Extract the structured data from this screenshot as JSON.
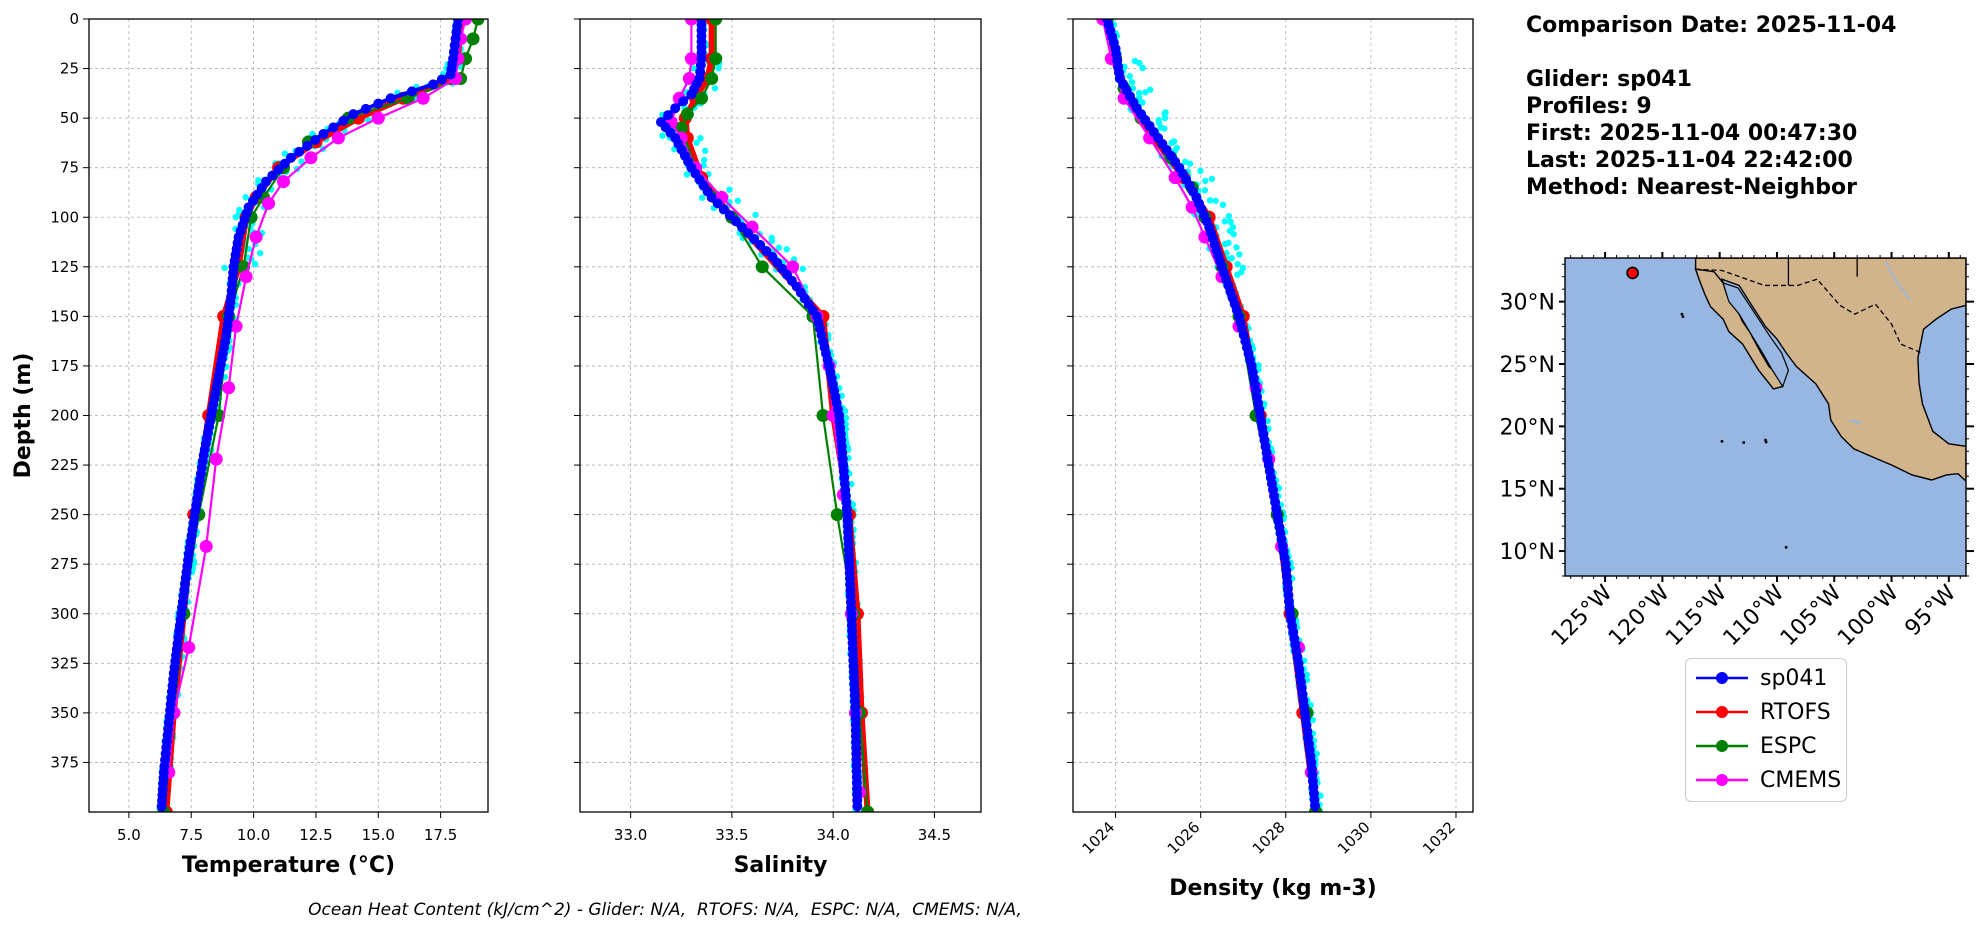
{
  "info": {
    "comparison_date": "Comparison Date: 2025-11-04",
    "glider": "Glider: sp041",
    "profiles": "Profiles: 9",
    "first": "First: 2025-11-04 00:47:30",
    "last": "Last: 2025-11-04 22:42:00",
    "method": "Method: Nearest-Neighbor"
  },
  "footer": "Ocean Heat Content (kJ/cm^2) - Glider: N/A,  RTOFS: N/A,  ESPC: N/A,  CMEMS: N/A,",
  "colors": {
    "sp041": "#0000ff",
    "RTOFS": "#ff0000",
    "ESPC": "#008000",
    "CMEMS": "#ff00ff",
    "glider_points": "#00ffff",
    "ocean": "#97b6e1",
    "land": "#d2b48c"
  },
  "legend": [
    {
      "name": "sp041",
      "color": "#0000ff"
    },
    {
      "name": "RTOFS",
      "color": "#ff0000"
    },
    {
      "name": "ESPC",
      "color": "#008000"
    },
    {
      "name": "CMEMS",
      "color": "#ff00ff"
    }
  ],
  "chart_data": [
    {
      "type": "line",
      "xlabel": "Temperature (°C)",
      "ylabel": "Depth (m)",
      "xlim": [
        3.4,
        19.4
      ],
      "ylim": [
        400,
        0
      ],
      "xticks": [
        "5.0",
        "7.5",
        "10.0",
        "12.5",
        "15.0",
        "17.5"
      ],
      "yticks": [
        "0",
        "25",
        "50",
        "75",
        "100",
        "125",
        "150",
        "175",
        "200",
        "225",
        "250",
        "275",
        "300",
        "325",
        "350",
        "375"
      ],
      "grid": true,
      "series": [
        {
          "name": "sp041",
          "points": [
            [
              18.2,
              0
            ],
            [
              18.1,
              10
            ],
            [
              18.0,
              20
            ],
            [
              17.9,
              28
            ],
            [
              17.2,
              33
            ],
            [
              15.5,
              40
            ],
            [
              14.0,
              48
            ],
            [
              12.8,
              58
            ],
            [
              11.5,
              70
            ],
            [
              10.5,
              82
            ],
            [
              9.8,
              95
            ],
            [
              9.4,
              110
            ],
            [
              9.2,
              125
            ],
            [
              9.1,
              140
            ],
            [
              8.9,
              160
            ],
            [
              8.6,
              180
            ],
            [
              8.3,
              200
            ],
            [
              8.0,
              220
            ],
            [
              7.7,
              245
            ],
            [
              7.4,
              270
            ],
            [
              7.1,
              300
            ],
            [
              6.8,
              330
            ],
            [
              6.6,
              355
            ],
            [
              6.4,
              380
            ],
            [
              6.3,
              400
            ]
          ]
        },
        {
          "name": "RTOFS",
          "points": [
            [
              18.3,
              0
            ],
            [
              18.2,
              20
            ],
            [
              17.9,
              30
            ],
            [
              16.0,
              40
            ],
            [
              14.2,
              50
            ],
            [
              12.5,
              62
            ],
            [
              11.0,
              75
            ],
            [
              10.1,
              90
            ],
            [
              9.7,
              100
            ],
            [
              9.4,
              125
            ],
            [
              8.8,
              150
            ],
            [
              8.2,
              200
            ],
            [
              7.6,
              250
            ],
            [
              7.2,
              300
            ],
            [
              6.8,
              350
            ],
            [
              6.5,
              400
            ]
          ]
        },
        {
          "name": "ESPC",
          "points": [
            [
              19.0,
              0
            ],
            [
              18.8,
              10
            ],
            [
              18.5,
              20
            ],
            [
              18.3,
              30
            ],
            [
              16.2,
              40
            ],
            [
              13.8,
              50
            ],
            [
              12.2,
              62
            ],
            [
              11.2,
              75
            ],
            [
              10.4,
              90
            ],
            [
              9.9,
              100
            ],
            [
              9.6,
              125
            ],
            [
              9.0,
              150
            ],
            [
              8.6,
              200
            ],
            [
              7.8,
              250
            ],
            [
              7.2,
              300
            ],
            [
              6.8,
              350
            ],
            [
              6.4,
              400
            ]
          ]
        },
        {
          "name": "CMEMS",
          "points": [
            [
              18.5,
              0
            ],
            [
              18.3,
              10
            ],
            [
              18.2,
              20
            ],
            [
              18.1,
              30
            ],
            [
              16.8,
              40
            ],
            [
              15.0,
              50
            ],
            [
              13.4,
              60
            ],
            [
              12.3,
              70
            ],
            [
              11.2,
              82
            ],
            [
              10.6,
              93
            ],
            [
              10.1,
              110
            ],
            [
              9.7,
              130
            ],
            [
              9.3,
              155
            ],
            [
              9.0,
              186
            ],
            [
              8.5,
              222
            ],
            [
              8.1,
              266
            ],
            [
              7.4,
              317
            ],
            [
              6.8,
              350
            ],
            [
              6.6,
              380
            ]
          ]
        }
      ]
    },
    {
      "type": "line",
      "xlabel": "Salinity",
      "xlim": [
        32.75,
        34.73
      ],
      "ylim": [
        400,
        0
      ],
      "xticks": [
        "33.0",
        "33.5",
        "34.0",
        "34.5"
      ],
      "grid": true,
      "series": [
        {
          "name": "sp041",
          "points": [
            [
              33.35,
              0
            ],
            [
              33.35,
              20
            ],
            [
              33.34,
              30
            ],
            [
              33.3,
              38
            ],
            [
              33.22,
              45
            ],
            [
              33.15,
              52
            ],
            [
              33.22,
              60
            ],
            [
              33.3,
              75
            ],
            [
              33.4,
              90
            ],
            [
              33.55,
              105
            ],
            [
              33.7,
              120
            ],
            [
              33.82,
              135
            ],
            [
              33.92,
              150
            ],
            [
              33.98,
              175
            ],
            [
              34.03,
              200
            ],
            [
              34.05,
              225
            ],
            [
              34.07,
              250
            ],
            [
              34.09,
              300
            ],
            [
              34.11,
              350
            ],
            [
              34.12,
              400
            ]
          ]
        },
        {
          "name": "RTOFS",
          "points": [
            [
              33.4,
              0
            ],
            [
              33.4,
              20
            ],
            [
              33.38,
              30
            ],
            [
              33.32,
              40
            ],
            [
              33.27,
              50
            ],
            [
              33.28,
              60
            ],
            [
              33.35,
              80
            ],
            [
              33.5,
              100
            ],
            [
              33.95,
              150
            ],
            [
              34.0,
              200
            ],
            [
              34.08,
              250
            ],
            [
              34.12,
              300
            ],
            [
              34.14,
              350
            ],
            [
              34.17,
              400
            ]
          ]
        },
        {
          "name": "ESPC",
          "points": [
            [
              33.42,
              0
            ],
            [
              33.42,
              20
            ],
            [
              33.4,
              30
            ],
            [
              33.35,
              40
            ],
            [
              33.28,
              48
            ],
            [
              33.25,
              55
            ],
            [
              33.32,
              75
            ],
            [
              33.42,
              90
            ],
            [
              33.5,
              100
            ],
            [
              33.65,
              125
            ],
            [
              33.9,
              150
            ],
            [
              33.95,
              200
            ],
            [
              34.02,
              250
            ],
            [
              34.1,
              300
            ],
            [
              34.13,
              350
            ],
            [
              34.17,
              400
            ]
          ]
        },
        {
          "name": "CMEMS",
          "points": [
            [
              33.3,
              0
            ],
            [
              33.3,
              20
            ],
            [
              33.29,
              30
            ],
            [
              33.24,
              40
            ],
            [
              33.2,
              52
            ],
            [
              33.25,
              60
            ],
            [
              33.32,
              75
            ],
            [
              33.45,
              90
            ],
            [
              33.6,
              105
            ],
            [
              33.8,
              125
            ],
            [
              33.92,
              150
            ],
            [
              33.98,
              175
            ],
            [
              34.0,
              200
            ],
            [
              34.05,
              240
            ],
            [
              34.09,
              300
            ],
            [
              34.11,
              350
            ],
            [
              34.13,
              390
            ]
          ]
        }
      ]
    },
    {
      "type": "line",
      "xlabel": "Density (kg m-3)",
      "xlim": [
        1023.0,
        1032.4
      ],
      "ylim": [
        400,
        0
      ],
      "xticks": [
        "1024",
        "1026",
        "1028",
        "1030",
        "1032"
      ],
      "grid": true,
      "series": [
        {
          "name": "sp041",
          "points": [
            [
              1023.8,
              0
            ],
            [
              1024.0,
              15
            ],
            [
              1024.1,
              30
            ],
            [
              1024.5,
              45
            ],
            [
              1025.0,
              60
            ],
            [
              1025.5,
              75
            ],
            [
              1025.9,
              90
            ],
            [
              1026.2,
              105
            ],
            [
              1026.5,
              125
            ],
            [
              1026.9,
              150
            ],
            [
              1027.2,
              175
            ],
            [
              1027.4,
              200
            ],
            [
              1027.6,
              225
            ],
            [
              1027.8,
              250
            ],
            [
              1028.0,
              275
            ],
            [
              1028.1,
              300
            ],
            [
              1028.3,
              325
            ],
            [
              1028.45,
              350
            ],
            [
              1028.6,
              375
            ],
            [
              1028.7,
              400
            ]
          ]
        },
        {
          "name": "RTOFS",
          "points": [
            [
              1023.8,
              0
            ],
            [
              1024.0,
              20
            ],
            [
              1024.3,
              40
            ],
            [
              1024.9,
              60
            ],
            [
              1025.6,
              80
            ],
            [
              1026.2,
              100
            ],
            [
              1026.6,
              125
            ],
            [
              1027.0,
              150
            ],
            [
              1027.4,
              200
            ],
            [
              1027.8,
              250
            ],
            [
              1028.1,
              300
            ],
            [
              1028.4,
              350
            ],
            [
              1028.7,
              400
            ]
          ]
        },
        {
          "name": "ESPC",
          "points": [
            [
              1023.8,
              0
            ],
            [
              1024.0,
              20
            ],
            [
              1024.2,
              35
            ],
            [
              1024.6,
              50
            ],
            [
              1025.3,
              70
            ],
            [
              1025.8,
              85
            ],
            [
              1026.1,
              100
            ],
            [
              1026.5,
              125
            ],
            [
              1026.9,
              150
            ],
            [
              1027.3,
              200
            ],
            [
              1027.8,
              250
            ],
            [
              1028.15,
              300
            ],
            [
              1028.5,
              350
            ],
            [
              1028.7,
              400
            ]
          ]
        },
        {
          "name": "CMEMS",
          "points": [
            [
              1023.7,
              0
            ],
            [
              1023.9,
              20
            ],
            [
              1024.2,
              40
            ],
            [
              1024.8,
              60
            ],
            [
              1025.4,
              80
            ],
            [
              1025.8,
              95
            ],
            [
              1026.1,
              110
            ],
            [
              1026.5,
              130
            ],
            [
              1026.9,
              155
            ],
            [
              1027.3,
              186
            ],
            [
              1027.6,
              222
            ],
            [
              1027.9,
              266
            ],
            [
              1028.3,
              317
            ],
            [
              1028.6,
              380
            ]
          ]
        }
      ]
    }
  ],
  "map": {
    "lat_labels": [
      "30°N",
      "25°N",
      "20°N",
      "15°N",
      "10°N"
    ],
    "lon_labels": [
      "125°W",
      "120°W",
      "115°W",
      "110°W",
      "105°W",
      "100°W",
      "95°W"
    ],
    "lon_range": [
      -128.5,
      -93.5
    ],
    "lat_range": [
      8.0,
      33.5
    ],
    "glider_position": {
      "lon": -122.6,
      "lat": 32.3
    }
  }
}
